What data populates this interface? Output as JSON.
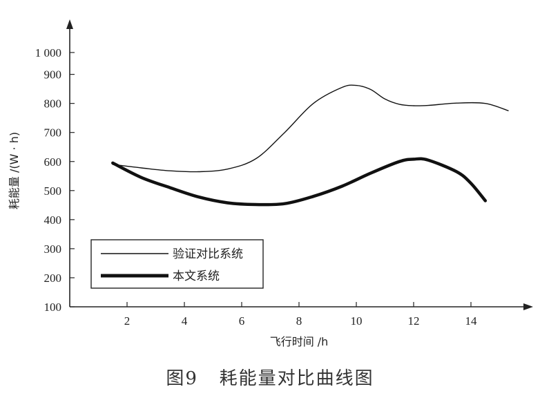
{
  "chart_data": {
    "type": "line",
    "xlabel": "飞行时间 /h",
    "ylabel": "耗能量 /(W · h)",
    "x_ticks": [
      2,
      4,
      6,
      8,
      10,
      12,
      14
    ],
    "y_ticks": [
      100,
      200,
      300,
      400,
      500,
      600,
      700,
      800,
      900
    ],
    "y_top_label": "1 000",
    "xlim": [
      0,
      16
    ],
    "ylim": [
      100,
      1000
    ],
    "series": [
      {
        "name": "验证对比系统",
        "style": "thin",
        "color": "#111111",
        "x": [
          1.5,
          2.5,
          3.5,
          4.5,
          5.5,
          6.5,
          7.5,
          8.5,
          9.5,
          10.0,
          10.5,
          11.0,
          11.5,
          12.0,
          12.5,
          13.5,
          14.5,
          15.3
        ],
        "y": [
          590,
          578,
          568,
          565,
          574,
          610,
          700,
          800,
          855,
          862,
          848,
          815,
          797,
          792,
          793,
          801,
          800,
          775
        ]
      },
      {
        "name": "本文系统",
        "style": "thick",
        "color": "#111111",
        "x": [
          1.5,
          2.5,
          3.5,
          4.5,
          5.5,
          6.5,
          7.5,
          8.5,
          9.5,
          10.5,
          11.5,
          12.0,
          12.5,
          13.5,
          14.0,
          14.5
        ],
        "y": [
          595,
          545,
          510,
          478,
          458,
          452,
          455,
          480,
          515,
          560,
          600,
          608,
          605,
          565,
          525,
          465
        ]
      }
    ],
    "legend_position": "bottom-left"
  },
  "caption": "图9   耗能量对比曲线图"
}
